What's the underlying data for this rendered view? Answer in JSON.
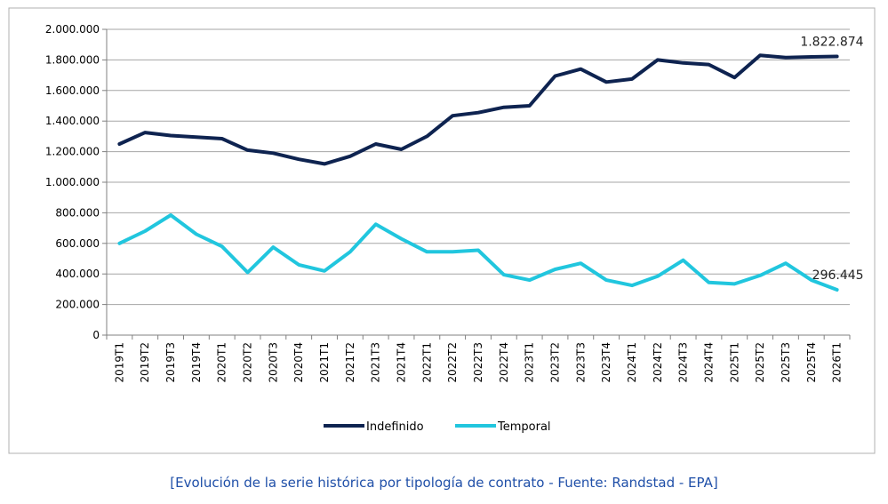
{
  "caption": "[Evolución de la serie histórica por tipología de contrato - Fuente: Randstad - EPA]",
  "colors": {
    "indefinido": "#0e2350",
    "temporal": "#21c6de",
    "grid": "#a6a6a6",
    "axis": "#808080",
    "caption": "#1f4fa8"
  },
  "chart_data": {
    "type": "line",
    "title": "",
    "xlabel": "",
    "ylabel": "",
    "ylim": [
      0,
      2000000
    ],
    "yticks": [
      "0",
      "200.000",
      "400.000",
      "600.000",
      "800.000",
      "1.000.000",
      "1.200.000",
      "1.400.000",
      "1.600.000",
      "1.800.000",
      "2.000.000"
    ],
    "grid": true,
    "legend": "bottom",
    "categories": [
      "2019T1",
      "2019T2",
      "2019T3",
      "2019T4",
      "2020T1",
      "2020T2",
      "2020T3",
      "2020T4",
      "2021T1",
      "2021T2",
      "2021T3",
      "2021T4",
      "2022T1",
      "2022T2",
      "2022T3",
      "2022T4",
      "2023T1",
      "2023T2",
      "2023T3",
      "2023T4",
      "2024T1",
      "2024T2",
      "2024T3",
      "2024T4",
      "2025T1",
      "2025T2",
      "2025T3",
      "2025T4",
      "2026T1"
    ],
    "series": [
      {
        "name": "Indefinido",
        "values": [
          1250000,
          1325000,
          1305000,
          1295000,
          1285000,
          1210000,
          1190000,
          1150000,
          1120000,
          1170000,
          1250000,
          1215000,
          1300000,
          1435000,
          1455000,
          1490000,
          1500000,
          1695000,
          1740000,
          1655000,
          1675000,
          1800000,
          1780000,
          1770000,
          1685000,
          1830000,
          1815000,
          1820000,
          1822874
        ]
      },
      {
        "name": "Temporal",
        "values": [
          600000,
          680000,
          785000,
          660000,
          580000,
          410000,
          575000,
          460000,
          420000,
          545000,
          725000,
          630000,
          545000,
          545000,
          555000,
          395000,
          360000,
          430000,
          470000,
          360000,
          325000,
          385000,
          490000,
          345000,
          335000,
          390000,
          470000,
          360000,
          296445
        ]
      }
    ],
    "annotations": [
      {
        "series": 0,
        "index": 28,
        "text": "1.822.874"
      },
      {
        "series": 1,
        "index": 28,
        "text": "296.445"
      }
    ]
  }
}
